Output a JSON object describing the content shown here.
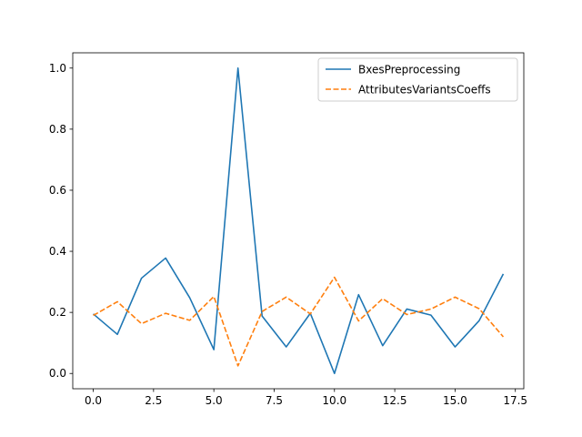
{
  "chart_data": {
    "type": "line",
    "title": "",
    "xlabel": "",
    "ylabel": "",
    "xlim": [
      -0.85,
      17.85
    ],
    "ylim": [
      -0.05,
      1.05
    ],
    "xticks": [
      0.0,
      2.5,
      5.0,
      7.5,
      10.0,
      12.5,
      15.0,
      17.5
    ],
    "xtick_labels": [
      "0.0",
      "2.5",
      "5.0",
      "7.5",
      "10.0",
      "12.5",
      "15.0",
      "17.5"
    ],
    "yticks": [
      0.0,
      0.2,
      0.4,
      0.6,
      0.8,
      1.0
    ],
    "ytick_labels": [
      "0.0",
      "0.2",
      "0.4",
      "0.6",
      "0.8",
      "1.0"
    ],
    "grid": false,
    "legend_position": "top-right",
    "x": [
      0,
      1,
      2,
      3,
      4,
      5,
      6,
      7,
      8,
      9,
      10,
      11,
      12,
      13,
      14,
      15,
      16,
      17
    ],
    "series": [
      {
        "name": "BxesPreprocessing",
        "color": "#1f77b4",
        "dash": "solid",
        "values": [
          0.195,
          0.128,
          0.312,
          0.378,
          0.248,
          0.078,
          1.0,
          0.188,
          0.087,
          0.197,
          0.0,
          0.258,
          0.091,
          0.211,
          0.191,
          0.087,
          0.173,
          0.326
        ]
      },
      {
        "name": "AttributesVariantsCoeffs",
        "color": "#ff7f0e",
        "dash": "dashed",
        "values": [
          0.19,
          0.235,
          0.163,
          0.197,
          0.174,
          0.252,
          0.025,
          0.203,
          0.25,
          0.195,
          0.315,
          0.172,
          0.245,
          0.193,
          0.211,
          0.25,
          0.212,
          0.12
        ]
      }
    ]
  }
}
